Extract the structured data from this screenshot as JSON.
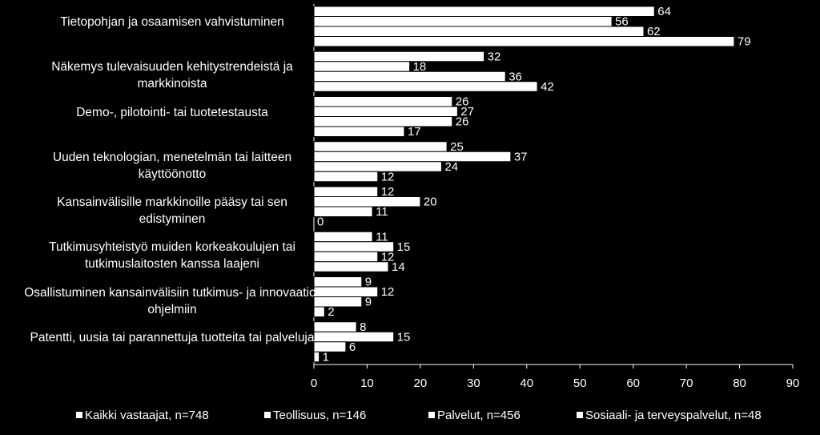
{
  "chart_data": {
    "type": "barh",
    "categories": [
      "Tietopohjan ja osaamisen vahvistuminen",
      "Näkemys tulevaisuuden kehitystrendeistä ja markkinoista",
      "Demo-, pilotointi- tai tuotetestausta",
      "Uuden teknologian, menetelmän tai laitteen käyttöönotto",
      "Kansainvälisille markkinoille pääsy tai sen edistyminen",
      "Tutkimusyhteistyö muiden korkeakoulujen tai tutkimuslaitosten kanssa laajeni",
      "Osallistuminen kansainvälisiin tutkimus- ja innovaatio-ohjelmiin",
      "Patentti, uusia tai parannettuja tuotteita tai palveluja"
    ],
    "series": [
      {
        "name": "Kaikki vastaajat, n=748",
        "color": "#ffffff",
        "values": [
          64,
          32,
          26,
          25,
          12,
          11,
          9,
          8
        ]
      },
      {
        "name": "Teollisuus, n=146",
        "color": "#ffffff",
        "values": [
          56,
          18,
          27,
          37,
          20,
          15,
          12,
          15
        ]
      },
      {
        "name": "Palvelut, n=456",
        "color": "#ffffff",
        "values": [
          62,
          36,
          26,
          24,
          11,
          12,
          9,
          6
        ]
      },
      {
        "name": "Sosiaali- ja terveyspalvelut, n=48",
        "color": "#ffffff",
        "values": [
          79,
          42,
          17,
          12,
          0,
          14,
          2,
          1
        ]
      }
    ],
    "xlim": [
      0,
      90
    ],
    "xticks": [
      0,
      10,
      20,
      30,
      40,
      50,
      60,
      70,
      80,
      90
    ]
  }
}
